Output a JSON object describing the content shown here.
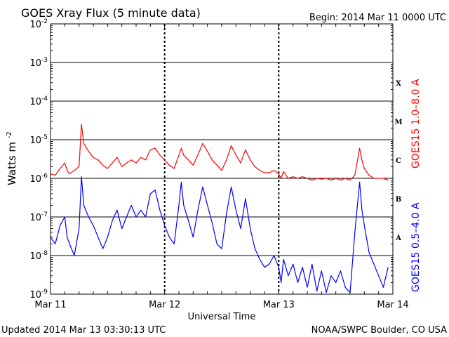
{
  "page": {
    "title": "GOES Xray Flux (5 minute data)",
    "begin": "Begin:  2014 Mar 11 0000 UTC",
    "updated": "Updated 2014 Mar 13 03:30:13 UTC",
    "credit": "NOAA/SWPC Boulder, CO USA"
  },
  "chart_data": {
    "type": "line",
    "title": "GOES Xray Flux (5 minute data)",
    "xlabel": "Universal Time",
    "ylabel": "Watts m",
    "ylabel_sup": "-2",
    "yscale": "log",
    "ylim": [
      1e-09,
      0.01
    ],
    "xlim": [
      "2014-03-11 00:00",
      "2014-03-14 00:00"
    ],
    "x_ticks": [
      "Mar 11",
      "Mar 12",
      "Mar 13",
      "Mar 14"
    ],
    "y_ticks": [
      {
        "value": 1e-09,
        "base": "10",
        "exp": "-9"
      },
      {
        "value": 1e-08,
        "base": "10",
        "exp": "-8"
      },
      {
        "value": 1e-07,
        "base": "10",
        "exp": "-7"
      },
      {
        "value": 1e-06,
        "base": "10",
        "exp": "-6"
      },
      {
        "value": 1e-05,
        "base": "10",
        "exp": "-5"
      },
      {
        "value": 0.0001,
        "base": "10",
        "exp": "-4"
      },
      {
        "value": 0.001,
        "base": "10",
        "exp": "-3"
      },
      {
        "value": 0.01,
        "base": "10",
        "exp": "-2"
      }
    ],
    "grid": true,
    "flare_classes": [
      {
        "label": "A",
        "value": 3e-08
      },
      {
        "label": "B",
        "value": 3e-07
      },
      {
        "label": "C",
        "value": 3e-06
      },
      {
        "label": "M",
        "value": 3e-05
      },
      {
        "label": "X",
        "value": 0.0003
      }
    ],
    "series": [
      {
        "name": "GOES15 1.0–8.0 A",
        "color": "#ff0000",
        "points": [
          [
            "2014-03-11 00:00",
            1.3e-06
          ],
          [
            "2014-03-11 01:00",
            1.2e-06
          ],
          [
            "2014-03-11 02:00",
            1.8e-06
          ],
          [
            "2014-03-11 03:00",
            2.5e-06
          ],
          [
            "2014-03-11 03:30",
            1.6e-06
          ],
          [
            "2014-03-11 04:00",
            1.3e-06
          ],
          [
            "2014-03-11 05:00",
            1.6e-06
          ],
          [
            "2014-03-11 06:00",
            2e-06
          ],
          [
            "2014-03-11 06:30",
            2.5e-05
          ],
          [
            "2014-03-11 07:00",
            8e-06
          ],
          [
            "2014-03-11 08:00",
            5e-06
          ],
          [
            "2014-03-11 09:00",
            3.5e-06
          ],
          [
            "2014-03-11 10:00",
            3e-06
          ],
          [
            "2014-03-11 11:00",
            2.2e-06
          ],
          [
            "2014-03-11 12:00",
            1.8e-06
          ],
          [
            "2014-03-11 13:00",
            2.5e-06
          ],
          [
            "2014-03-11 14:00",
            3.5e-06
          ],
          [
            "2014-03-11 15:00",
            2e-06
          ],
          [
            "2014-03-11 16:00",
            2.5e-06
          ],
          [
            "2014-03-11 17:00",
            3e-06
          ],
          [
            "2014-03-11 18:00",
            2.5e-06
          ],
          [
            "2014-03-11 19:00",
            3.5e-06
          ],
          [
            "2014-03-11 20:00",
            3e-06
          ],
          [
            "2014-03-11 21:00",
            5.5e-06
          ],
          [
            "2014-03-11 22:00",
            6e-06
          ],
          [
            "2014-03-11 23:00",
            4e-06
          ],
          [
            "2014-03-12 00:00",
            3e-06
          ],
          [
            "2014-03-12 01:00",
            2.2e-06
          ],
          [
            "2014-03-12 02:00",
            1.8e-06
          ],
          [
            "2014-03-12 03:00",
            4e-06
          ],
          [
            "2014-03-12 03:30",
            6e-06
          ],
          [
            "2014-03-12 04:00",
            4e-06
          ],
          [
            "2014-03-12 05:00",
            3e-06
          ],
          [
            "2014-03-12 06:00",
            2.2e-06
          ],
          [
            "2014-03-12 07:00",
            4e-06
          ],
          [
            "2014-03-12 08:00",
            8e-06
          ],
          [
            "2014-03-12 09:00",
            5e-06
          ],
          [
            "2014-03-12 10:00",
            3e-06
          ],
          [
            "2014-03-12 11:00",
            2.2e-06
          ],
          [
            "2014-03-12 12:00",
            1.6e-06
          ],
          [
            "2014-03-12 13:00",
            3e-06
          ],
          [
            "2014-03-12 14:00",
            7e-06
          ],
          [
            "2014-03-12 15:00",
            4e-06
          ],
          [
            "2014-03-12 16:00",
            2.5e-06
          ],
          [
            "2014-03-12 17:00",
            5.5e-06
          ],
          [
            "2014-03-12 18:00",
            3e-06
          ],
          [
            "2014-03-12 19:00",
            2e-06
          ],
          [
            "2014-03-12 20:00",
            1.6e-06
          ],
          [
            "2014-03-12 21:00",
            1.4e-06
          ],
          [
            "2014-03-12 22:00",
            1.4e-06
          ],
          [
            "2014-03-12 23:00",
            1.6e-06
          ],
          [
            "2014-03-13 00:00",
            1.3e-06
          ],
          [
            "2014-03-13 00:30",
            1e-06
          ],
          [
            "2014-03-13 01:00",
            1.5e-06
          ],
          [
            "2014-03-13 02:00",
            1e-06
          ],
          [
            "2014-03-13 03:00",
            1.1e-06
          ],
          [
            "2014-03-13 04:00",
            1e-06
          ],
          [
            "2014-03-13 05:00",
            1.1e-06
          ],
          [
            "2014-03-13 06:00",
            1e-06
          ],
          [
            "2014-03-13 07:00",
            9e-07
          ],
          [
            "2014-03-13 08:00",
            1e-06
          ],
          [
            "2014-03-13 09:00",
            9.5e-07
          ],
          [
            "2014-03-13 10:00",
            1e-06
          ],
          [
            "2014-03-13 11:00",
            9e-07
          ],
          [
            "2014-03-13 12:00",
            1e-06
          ],
          [
            "2014-03-13 13:00",
            9e-07
          ],
          [
            "2014-03-13 14:00",
            1e-06
          ],
          [
            "2014-03-13 15:00",
            9e-07
          ],
          [
            "2014-03-13 16:00",
            1.2e-06
          ],
          [
            "2014-03-13 17:00",
            6e-06
          ],
          [
            "2014-03-13 17:30",
            3e-06
          ],
          [
            "2014-03-13 18:00",
            1.8e-06
          ],
          [
            "2014-03-13 19:00",
            1.2e-06
          ],
          [
            "2014-03-13 20:00",
            1e-06
          ],
          [
            "2014-03-13 21:00",
            1e-06
          ],
          [
            "2014-03-13 22:00",
            1e-06
          ],
          [
            "2014-03-13 23:00",
            9e-07
          ]
        ]
      },
      {
        "name": "GOES15 0.5–4.0 A",
        "color": "#0000ff",
        "points": [
          [
            "2014-03-11 00:00",
            3e-08
          ],
          [
            "2014-03-11 01:00",
            2e-08
          ],
          [
            "2014-03-11 02:00",
            6e-08
          ],
          [
            "2014-03-11 03:00",
            1e-07
          ],
          [
            "2014-03-11 03:30",
            3e-08
          ],
          [
            "2014-03-11 04:00",
            2e-08
          ],
          [
            "2014-03-11 05:00",
            1e-08
          ],
          [
            "2014-03-11 06:00",
            5e-08
          ],
          [
            "2014-03-11 06:30",
            1.1e-06
          ],
          [
            "2014-03-11 07:00",
            2e-07
          ],
          [
            "2014-03-11 08:00",
            1e-07
          ],
          [
            "2014-03-11 09:00",
            6e-08
          ],
          [
            "2014-03-11 10:00",
            3e-08
          ],
          [
            "2014-03-11 11:00",
            1.5e-08
          ],
          [
            "2014-03-11 12:00",
            3e-08
          ],
          [
            "2014-03-11 13:00",
            8e-08
          ],
          [
            "2014-03-11 14:00",
            1.5e-07
          ],
          [
            "2014-03-11 15:00",
            5e-08
          ],
          [
            "2014-03-11 16:00",
            1e-07
          ],
          [
            "2014-03-11 17:00",
            2e-07
          ],
          [
            "2014-03-11 18:00",
            1e-07
          ],
          [
            "2014-03-11 19:00",
            1.5e-07
          ],
          [
            "2014-03-11 20:00",
            1e-07
          ],
          [
            "2014-03-11 21:00",
            4e-07
          ],
          [
            "2014-03-11 22:00",
            5e-07
          ],
          [
            "2014-03-11 23:00",
            1.5e-07
          ],
          [
            "2014-03-12 00:00",
            6e-08
          ],
          [
            "2014-03-12 01:00",
            3e-08
          ],
          [
            "2014-03-12 02:00",
            2e-08
          ],
          [
            "2014-03-12 03:00",
            2e-07
          ],
          [
            "2014-03-12 03:30",
            8e-07
          ],
          [
            "2014-03-12 04:00",
            2e-07
          ],
          [
            "2014-03-12 05:00",
            8e-08
          ],
          [
            "2014-03-12 06:00",
            3e-08
          ],
          [
            "2014-03-12 07:00",
            1.5e-07
          ],
          [
            "2014-03-12 08:00",
            6e-07
          ],
          [
            "2014-03-12 09:00",
            2e-07
          ],
          [
            "2014-03-12 10:00",
            7e-08
          ],
          [
            "2014-03-12 11:00",
            2e-08
          ],
          [
            "2014-03-12 12:00",
            1.5e-08
          ],
          [
            "2014-03-12 13:00",
            1.2e-07
          ],
          [
            "2014-03-12 14:00",
            6e-07
          ],
          [
            "2014-03-12 15:00",
            1.5e-07
          ],
          [
            "2014-03-12 16:00",
            5e-08
          ],
          [
            "2014-03-12 17:00",
            3e-07
          ],
          [
            "2014-03-12 18:00",
            5e-08
          ],
          [
            "2014-03-12 19:00",
            1.5e-08
          ],
          [
            "2014-03-12 20:00",
            8e-09
          ],
          [
            "2014-03-12 21:00",
            5e-09
          ],
          [
            "2014-03-12 22:00",
            6e-09
          ],
          [
            "2014-03-12 23:00",
            1e-08
          ],
          [
            "2014-03-13 00:00",
            5e-09
          ],
          [
            "2014-03-13 00:30",
            2e-09
          ],
          [
            "2014-03-13 01:00",
            8e-09
          ],
          [
            "2014-03-13 02:00",
            3e-09
          ],
          [
            "2014-03-13 03:00",
            6e-09
          ],
          [
            "2014-03-13 04:00",
            2e-09
          ],
          [
            "2014-03-13 05:00",
            5e-09
          ],
          [
            "2014-03-13 06:00",
            1.5e-09
          ],
          [
            "2014-03-13 07:00",
            6e-09
          ],
          [
            "2014-03-13 08:00",
            1.2e-09
          ],
          [
            "2014-03-13 09:00",
            4e-09
          ],
          [
            "2014-03-13 10:00",
            1.1e-09
          ],
          [
            "2014-03-13 11:00",
            3e-09
          ],
          [
            "2014-03-13 12:00",
            2e-09
          ],
          [
            "2014-03-13 13:00",
            4e-09
          ],
          [
            "2014-03-13 14:00",
            1.5e-09
          ],
          [
            "2014-03-13 15:00",
            1.1e-09
          ],
          [
            "2014-03-13 16:00",
            4e-08
          ],
          [
            "2014-03-13 17:00",
            8e-07
          ],
          [
            "2014-03-13 17:30",
            1.5e-07
          ],
          [
            "2014-03-13 18:00",
            6e-08
          ],
          [
            "2014-03-13 19:00",
            1.2e-08
          ],
          [
            "2014-03-13 20:00",
            6e-09
          ],
          [
            "2014-03-13 21:00",
            3e-09
          ],
          [
            "2014-03-13 22:00",
            1.5e-09
          ],
          [
            "2014-03-13 23:00",
            5e-09
          ]
        ]
      }
    ]
  }
}
